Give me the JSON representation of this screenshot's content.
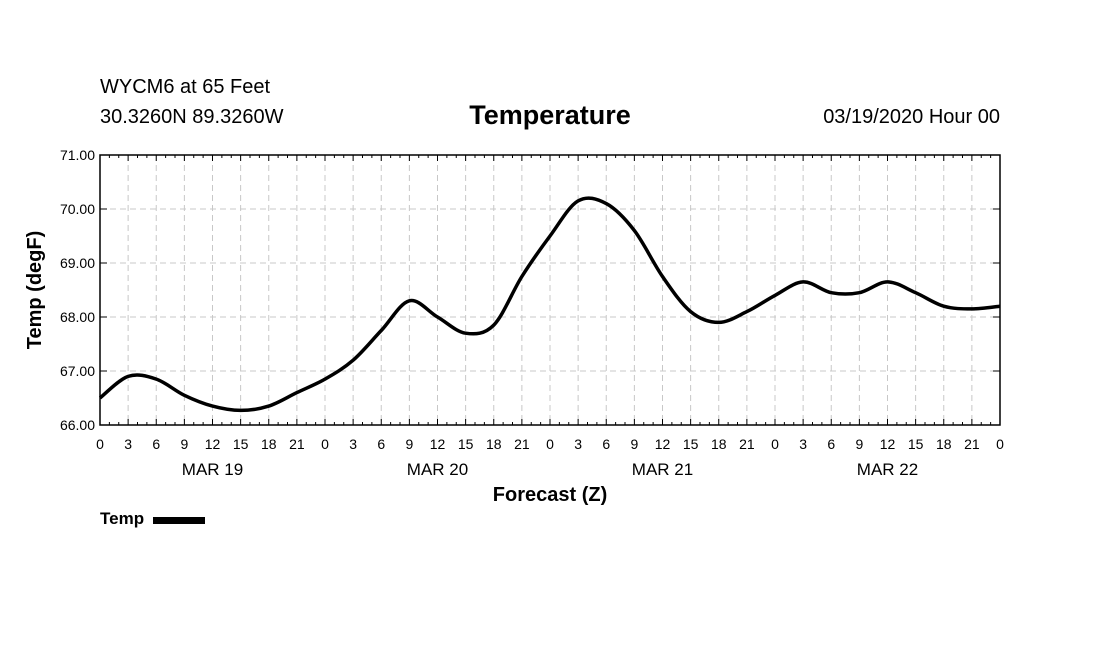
{
  "header": {
    "station": "WYCM6 at 65 Feet",
    "coords": "30.3260N 89.3260W",
    "run_time": "03/19/2020 Hour 00"
  },
  "chart_data": {
    "type": "line",
    "title": "Temperature",
    "xlabel": "Forecast (Z)",
    "ylabel": "Temp (degF)",
    "xlim": [
      0,
      96
    ],
    "ylim": [
      66,
      71
    ],
    "y_ticks": [
      66,
      67,
      68,
      69,
      70,
      71
    ],
    "y_tick_labels": [
      "66.00",
      "67.00",
      "68.00",
      "69.00",
      "70.00",
      "71.00"
    ],
    "x_ticks": [
      0,
      3,
      6,
      9,
      12,
      15,
      18,
      21,
      24,
      27,
      30,
      33,
      36,
      39,
      42,
      45,
      48,
      51,
      54,
      57,
      60,
      63,
      66,
      69,
      72,
      75,
      78,
      81,
      84,
      87,
      90,
      93,
      96
    ],
    "x_tick_labels": [
      "0",
      "3",
      "6",
      "9",
      "12",
      "15",
      "18",
      "21",
      "0",
      "3",
      "6",
      "9",
      "12",
      "15",
      "18",
      "21",
      "0",
      "3",
      "6",
      "9",
      "12",
      "15",
      "18",
      "21",
      "0",
      "3",
      "6",
      "9",
      "12",
      "15",
      "18",
      "21",
      "0"
    ],
    "day_labels": [
      {
        "x": 12,
        "label": "MAR 19"
      },
      {
        "x": 36,
        "label": "MAR 20"
      },
      {
        "x": 60,
        "label": "MAR 21"
      },
      {
        "x": 84,
        "label": "MAR 22"
      }
    ],
    "grid": true,
    "legend_position": "bottom-left",
    "series": [
      {
        "name": "Temp",
        "x": [
          0,
          3,
          6,
          9,
          12,
          15,
          18,
          21,
          24,
          27,
          30,
          33,
          36,
          39,
          42,
          45,
          48,
          51,
          54,
          57,
          60,
          63,
          66,
          69,
          72,
          75,
          78,
          81,
          84,
          87,
          90,
          93,
          96
        ],
        "y": [
          66.5,
          66.9,
          66.85,
          66.55,
          66.35,
          66.27,
          66.35,
          66.6,
          66.85,
          67.2,
          67.75,
          68.3,
          68.0,
          67.7,
          67.85,
          68.75,
          69.5,
          70.15,
          70.1,
          69.6,
          68.75,
          68.1,
          67.9,
          68.1,
          68.4,
          68.65,
          68.45,
          68.45,
          68.65,
          68.45,
          68.2,
          68.15,
          68.2
        ]
      }
    ]
  },
  "legend": {
    "label": "Temp"
  }
}
